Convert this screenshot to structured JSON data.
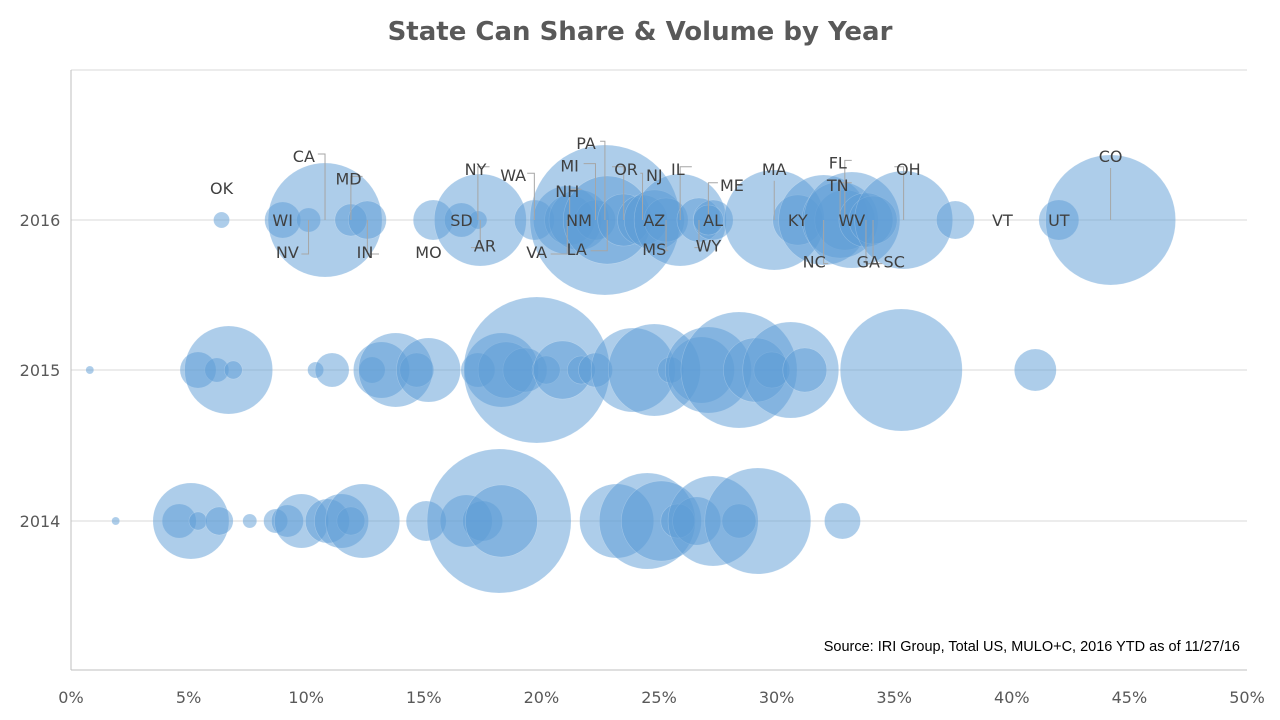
{
  "chart_data": {
    "type": "bubble",
    "title": "State Can Share & Volume by Year",
    "xlim": [
      0,
      50
    ],
    "x_ticks": [
      "0%",
      "5%",
      "10%",
      "15%",
      "20%",
      "25%",
      "30%",
      "35%",
      "40%",
      "45%",
      "50%"
    ],
    "y_categories": [
      "2014",
      "2015",
      "2016"
    ],
    "annotation": "Source: IRI Group, Total US, MULO+C, 2016 YTD as of 11/27/16",
    "bubble_color": "#5B9BD5",
    "gridlines": "horizontal",
    "series": [
      {
        "year": "2016",
        "points": [
          {
            "label": "OK",
            "x": 6.4,
            "size": 8
          },
          {
            "label": "WI",
            "x": 9.0,
            "size": 18
          },
          {
            "label": "NV",
            "x": 10.1,
            "size": 12
          },
          {
            "label": "CA",
            "x": 10.8,
            "size": 57
          },
          {
            "label": "MD",
            "x": 11.9,
            "size": 16
          },
          {
            "label": "IN",
            "x": 12.6,
            "size": 19
          },
          {
            "label": "MO",
            "x": 15.4,
            "size": 20
          },
          {
            "label": "SD",
            "x": 16.6,
            "size": 17
          },
          {
            "label": "NY",
            "x": 17.3,
            "size": 9
          },
          {
            "label": "AR",
            "x": 17.4,
            "size": 46
          },
          {
            "label": "WA",
            "x": 19.7,
            "size": 20
          },
          {
            "label": "VA",
            "x": 21.1,
            "size": 34
          },
          {
            "label": "NH",
            "x": 21.2,
            "size": 25
          },
          {
            "label": "NM",
            "x": 21.6,
            "size": 30
          },
          {
            "label": "MI",
            "x": 22.3,
            "size": 20
          },
          {
            "label": "PA",
            "x": 22.7,
            "size": 75
          },
          {
            "label": "LA",
            "x": 22.8,
            "size": 44
          },
          {
            "label": "OR",
            "x": 23.5,
            "size": 26
          },
          {
            "label": "NJ",
            "x": 24.3,
            "size": 25
          },
          {
            "label": "AZ",
            "x": 24.8,
            "size": 30
          },
          {
            "label": "MS",
            "x": 25.3,
            "size": 22
          },
          {
            "label": "IL",
            "x": 25.9,
            "size": 46
          },
          {
            "label": "WY",
            "x": 26.7,
            "size": 22
          },
          {
            "label": "AL",
            "x": 27.3,
            "size": 20
          },
          {
            "label": "ME",
            "x": 27.1,
            "size": 15
          },
          {
            "label": "MA",
            "x": 29.9,
            "size": 50
          },
          {
            "label": "KY",
            "x": 30.9,
            "size": 25
          },
          {
            "label": "NC",
            "x": 32.0,
            "size": 45
          },
          {
            "label": "FL",
            "x": 32.9,
            "size": 30
          },
          {
            "label": "TN",
            "x": 32.7,
            "size": 38
          },
          {
            "label": "WV",
            "x": 33.2,
            "size": 48
          },
          {
            "label": "SC",
            "x": 33.8,
            "size": 27
          },
          {
            "label": "GA",
            "x": 34.1,
            "size": 24
          },
          {
            "label": "OH",
            "x": 35.4,
            "size": 49
          },
          {
            "label": "VT",
            "x": 37.6,
            "size": 19
          },
          {
            "label": "UT",
            "x": 42.0,
            "size": 20
          },
          {
            "label": "CO",
            "x": 44.2,
            "size": 65
          }
        ]
      },
      {
        "year": "2015",
        "points": [
          {
            "x": 0.8,
            "size": 4
          },
          {
            "x": 5.4,
            "size": 18
          },
          {
            "x": 6.2,
            "size": 12
          },
          {
            "x": 6.7,
            "size": 44
          },
          {
            "x": 6.9,
            "size": 9
          },
          {
            "x": 10.4,
            "size": 8
          },
          {
            "x": 11.1,
            "size": 17
          },
          {
            "x": 12.8,
            "size": 13
          },
          {
            "x": 13.2,
            "size": 28
          },
          {
            "x": 13.8,
            "size": 37
          },
          {
            "x": 14.7,
            "size": 17
          },
          {
            "x": 15.2,
            "size": 32
          },
          {
            "x": 17.3,
            "size": 17
          },
          {
            "x": 18.3,
            "size": 37
          },
          {
            "x": 18.5,
            "size": 28
          },
          {
            "x": 19.3,
            "size": 22
          },
          {
            "x": 19.8,
            "size": 73
          },
          {
            "x": 20.2,
            "size": 14
          },
          {
            "x": 20.9,
            "size": 29
          },
          {
            "x": 21.7,
            "size": 14
          },
          {
            "x": 22.3,
            "size": 17
          },
          {
            "x": 23.9,
            "size": 42
          },
          {
            "x": 24.8,
            "size": 46
          },
          {
            "x": 25.5,
            "size": 13
          },
          {
            "x": 26.8,
            "size": 33
          },
          {
            "x": 27.1,
            "size": 43
          },
          {
            "x": 28.4,
            "size": 58
          },
          {
            "x": 29.1,
            "size": 32
          },
          {
            "x": 29.8,
            "size": 18
          },
          {
            "x": 30.6,
            "size": 48
          },
          {
            "x": 31.2,
            "size": 22
          },
          {
            "x": 35.3,
            "size": 61
          },
          {
            "x": 41.0,
            "size": 21
          }
        ]
      },
      {
        "year": "2014",
        "points": [
          {
            "x": 1.9,
            "size": 4
          },
          {
            "x": 4.6,
            "size": 17
          },
          {
            "x": 5.1,
            "size": 38
          },
          {
            "x": 5.4,
            "size": 9
          },
          {
            "x": 6.3,
            "size": 14
          },
          {
            "x": 7.6,
            "size": 7
          },
          {
            "x": 8.7,
            "size": 12
          },
          {
            "x": 9.2,
            "size": 16
          },
          {
            "x": 9.8,
            "size": 27
          },
          {
            "x": 10.9,
            "size": 22
          },
          {
            "x": 11.5,
            "size": 27
          },
          {
            "x": 11.9,
            "size": 14
          },
          {
            "x": 12.4,
            "size": 37
          },
          {
            "x": 15.1,
            "size": 20
          },
          {
            "x": 16.8,
            "size": 26
          },
          {
            "x": 17.5,
            "size": 20
          },
          {
            "x": 18.2,
            "size": 72
          },
          {
            "x": 18.3,
            "size": 36
          },
          {
            "x": 23.2,
            "size": 37
          },
          {
            "x": 24.5,
            "size": 48
          },
          {
            "x": 25.1,
            "size": 40
          },
          {
            "x": 25.8,
            "size": 17
          },
          {
            "x": 26.6,
            "size": 24
          },
          {
            "x": 27.3,
            "size": 45
          },
          {
            "x": 28.4,
            "size": 17
          },
          {
            "x": 29.2,
            "size": 53
          },
          {
            "x": 32.8,
            "size": 18
          }
        ]
      }
    ],
    "labels_2016": [
      {
        "text": "OK",
        "lx": 6.4,
        "ly": -1
      },
      {
        "text": "WI",
        "lx": 9.0,
        "ly": 0
      },
      {
        "text": "NV",
        "lx": 9.2,
        "ly": 1,
        "tx": 10.1
      },
      {
        "text": "CA",
        "lx": 9.9,
        "ly": -2,
        "tx": 10.8
      },
      {
        "text": "MD",
        "lx": 11.8,
        "ly": -1.3,
        "tx": 11.9
      },
      {
        "text": "IN",
        "lx": 12.5,
        "ly": 1,
        "tx": 12.6
      },
      {
        "text": "MO",
        "lx": 15.2,
        "ly": 1
      },
      {
        "text": "SD",
        "lx": 16.6,
        "ly": 0
      },
      {
        "text": "NY",
        "lx": 17.2,
        "ly": -1.6,
        "tx": 17.3
      },
      {
        "text": "AR",
        "lx": 17.6,
        "ly": 0.8,
        "tx": 17.4
      },
      {
        "text": "WA",
        "lx": 18.8,
        "ly": -1.4,
        "tx": 19.7
      },
      {
        "text": "VA",
        "lx": 19.8,
        "ly": 1.0,
        "tx": 21.1
      },
      {
        "text": "NH",
        "lx": 21.1,
        "ly": -0.9,
        "tx": 21.2
      },
      {
        "text": "NM",
        "lx": 21.6,
        "ly": 0
      },
      {
        "text": "MI",
        "lx": 21.2,
        "ly": -1.7,
        "tx": 22.3
      },
      {
        "text": "LA",
        "lx": 21.5,
        "ly": 0.9,
        "tx": 22.8
      },
      {
        "text": "PA",
        "lx": 21.9,
        "ly": -2.4,
        "tx": 22.7
      },
      {
        "text": "OR",
        "lx": 23.6,
        "ly": -1.6,
        "tx": 23.5
      },
      {
        "text": "NJ",
        "lx": 24.8,
        "ly": -1.4,
        "tx": 24.3
      },
      {
        "text": "AZ",
        "lx": 24.8,
        "ly": 0
      },
      {
        "text": "MS",
        "lx": 24.8,
        "ly": 0.9,
        "tx": 25.3
      },
      {
        "text": "IL",
        "lx": 25.8,
        "ly": -1.6,
        "tx": 25.9
      },
      {
        "text": "ME",
        "lx": 28.1,
        "ly": -1.1,
        "tx": 27.1
      },
      {
        "text": "AL",
        "lx": 27.3,
        "ly": 0
      },
      {
        "text": "WY",
        "lx": 27.1,
        "ly": 0.8,
        "tx": 26.7
      },
      {
        "text": "MA",
        "lx": 29.9,
        "ly": -1.6
      },
      {
        "text": "KY",
        "lx": 30.9,
        "ly": 0
      },
      {
        "text": "NC",
        "lx": 31.6,
        "ly": 1.3,
        "tx": 32.0
      },
      {
        "text": "FL",
        "lx": 32.6,
        "ly": -1.8,
        "tx": 32.9
      },
      {
        "text": "TN",
        "lx": 32.6,
        "ly": -1.1,
        "tx": 32.7
      },
      {
        "text": "WV",
        "lx": 33.2,
        "ly": 0
      },
      {
        "text": "SC",
        "lx": 35.0,
        "ly": 1.3,
        "tx": 33.8
      },
      {
        "text": "GA",
        "lx": 33.9,
        "ly": 1.3,
        "tx": 34.1
      },
      {
        "text": "OH",
        "lx": 35.6,
        "ly": -1.6,
        "tx": 35.4
      },
      {
        "text": "VT",
        "lx": 39.6,
        "ly": 0
      },
      {
        "text": "UT",
        "lx": 42.0,
        "ly": 0
      },
      {
        "text": "CO",
        "lx": 44.2,
        "ly": -2.0
      }
    ]
  }
}
